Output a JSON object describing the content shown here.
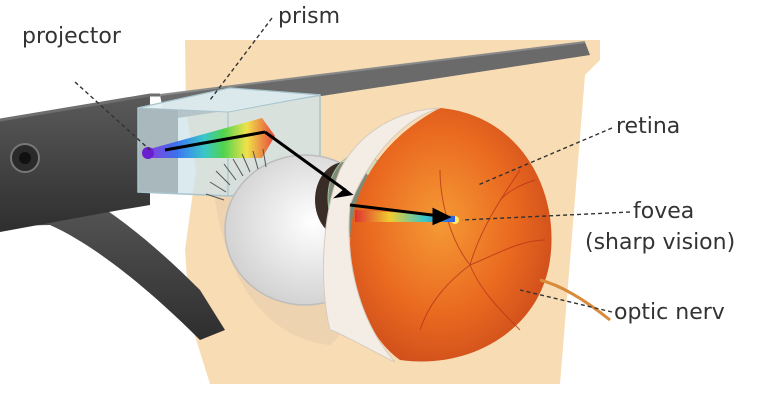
{
  "labels": {
    "projector": "projector",
    "prism": "prism",
    "retina": "retina",
    "fovea": "fovea",
    "fovea_note": "(sharp vision)",
    "optic_nerve": "optic nerv"
  },
  "colors": {
    "skin": "#f7dcb4",
    "glasses_frame": "#4a4a4a",
    "eye_orange": "#e8621f",
    "prism_glass": "#cde3ea",
    "leader_line": "#333333"
  }
}
